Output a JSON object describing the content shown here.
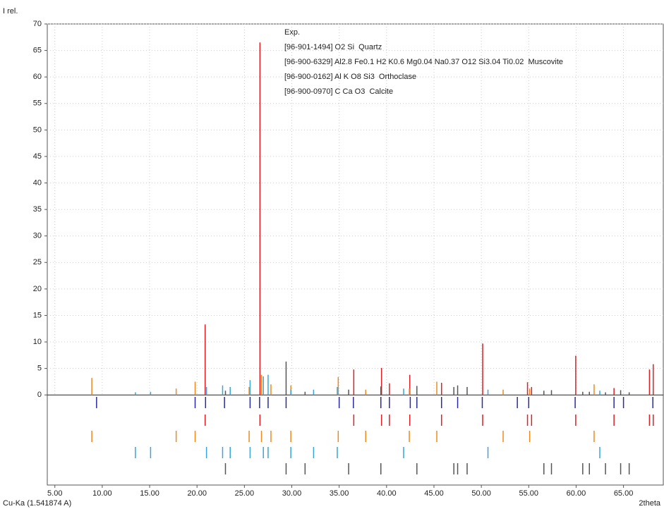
{
  "chart_data": {
    "type": "stick",
    "y_label": "I rel.",
    "x_label": "2theta",
    "radiation": "Cu-Ka (1.541874 A)",
    "xlim": [
      4.2,
      69.2
    ],
    "ylim": [
      -17,
      70
    ],
    "grid": true,
    "xticks": [
      {
        "value": 5,
        "label": "5.00"
      },
      {
        "value": 10,
        "label": "10.00"
      },
      {
        "value": 15,
        "label": "15.00"
      },
      {
        "value": 20,
        "label": "20.00"
      },
      {
        "value": 25,
        "label": "25.00"
      },
      {
        "value": 30,
        "label": "30.00"
      },
      {
        "value": 35,
        "label": "35.00"
      },
      {
        "value": 40,
        "label": "40.00"
      },
      {
        "value": 45,
        "label": "45.00"
      },
      {
        "value": 50,
        "label": "50.00"
      },
      {
        "value": 55,
        "label": "55.00"
      },
      {
        "value": 60,
        "label": "60.00"
      },
      {
        "value": 65,
        "label": "65.00"
      }
    ],
    "yticks": [
      0,
      5,
      10,
      15,
      20,
      25,
      30,
      35,
      40,
      45,
      50,
      55,
      60,
      65,
      70
    ],
    "series": [
      {
        "name": "Exp.",
        "color": "#2a2a9a",
        "x": [
          9.4,
          19.8,
          20.9,
          22.9,
          25.6,
          26.6,
          27.5,
          29.4,
          35.0,
          36.5,
          39.4,
          40.3,
          42.5,
          43.2,
          45.8,
          47.5,
          50.1,
          53.8,
          55.0,
          59.9,
          64.0,
          65.0,
          68.1
        ]
      },
      {
        "name": "[96-901-1494] O2 Si  Quartz",
        "color": "#dd1f26",
        "x": [
          20.86,
          26.64,
          36.54,
          39.47,
          40.3,
          42.45,
          45.8,
          50.14,
          54.87,
          55.3,
          59.96,
          64.0,
          67.74,
          68.14
        ],
        "values": [
          13.3,
          66.5,
          4.8,
          5.1,
          2.2,
          3.8,
          2.3,
          9.7,
          2.4,
          1.5,
          7.4,
          1.3,
          4.8,
          5.8
        ]
      },
      {
        "name": "[96-900-6329] Al2.8 Fe0.1 H2 K0.6 Mg0.04 Na0.37 O12 Si3.04 Ti0.02  Muscovite",
        "color": "#f08a1c",
        "x": [
          8.9,
          17.8,
          19.8,
          25.5,
          26.8,
          27.8,
          29.9,
          34.9,
          37.8,
          42.4,
          45.3,
          52.3,
          55.1,
          61.9
        ],
        "values": [
          3.2,
          1.2,
          2.5,
          1.5,
          3.8,
          2.0,
          1.8,
          3.4,
          1.0,
          1.2,
          2.5,
          1.0,
          1.2,
          2.0
        ]
      },
      {
        "name": "[96-900-0162] Al K O8 Si3  Orthoclase",
        "color": "#36a6dc",
        "x": [
          13.5,
          15.1,
          21.0,
          22.7,
          23.5,
          25.6,
          27.0,
          27.5,
          29.9,
          32.3,
          34.8,
          41.8,
          50.7,
          62.5
        ],
        "values": [
          0.5,
          0.6,
          1.5,
          1.8,
          1.5,
          2.8,
          3.5,
          3.8,
          1.0,
          1.0,
          1.5,
          1.2,
          1.0,
          0.8
        ]
      },
      {
        "name": "[96-900-0970] C Ca O3  Calcite",
        "color": "#555555",
        "x": [
          23.0,
          29.4,
          31.4,
          36.0,
          39.4,
          43.2,
          47.1,
          47.5,
          48.5,
          56.6,
          57.4,
          60.7,
          61.4,
          63.1,
          64.7,
          65.6
        ],
        "values": [
          0.8,
          6.3,
          0.6,
          1.0,
          1.6,
          1.7,
          1.5,
          1.8,
          1.5,
          0.8,
          0.9,
          0.6,
          0.6,
          0.5,
          0.9,
          0.5
        ]
      }
    ]
  }
}
